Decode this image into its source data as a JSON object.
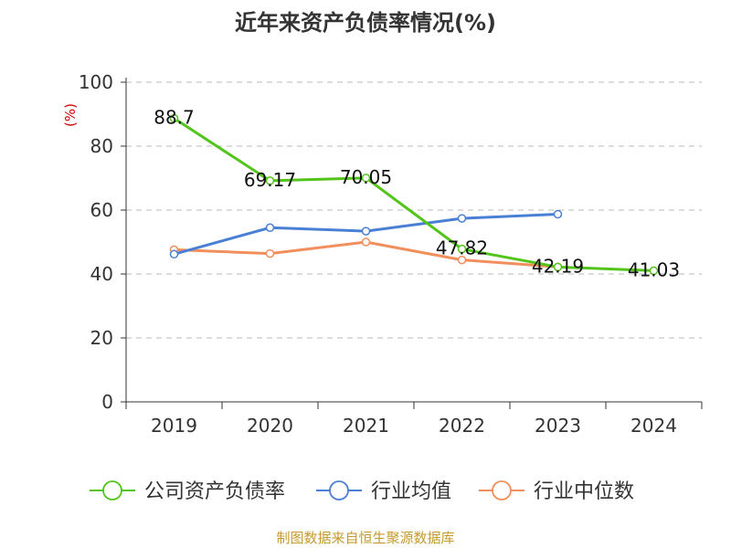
{
  "chart_data": {
    "type": "line",
    "title": "近年来资产负债率情况(%)",
    "ylabel": "(%)",
    "xlabel": "",
    "categories": [
      "2019",
      "2020",
      "2021",
      "2022",
      "2023",
      "2024"
    ],
    "ylim": [
      0,
      100
    ],
    "yticks": [
      0,
      20,
      40,
      60,
      80,
      100
    ],
    "grid": true,
    "legend_position": "bottom",
    "series": [
      {
        "name": "公司资产负债率",
        "color": "#52c41a",
        "values": [
          88.7,
          69.17,
          70.05,
          47.82,
          42.19,
          41.03
        ],
        "labels": [
          "88.7",
          "69.17",
          "70.05",
          "47.82",
          "42.19",
          "41.03"
        ]
      },
      {
        "name": "行业均值",
        "color": "#4a7fd6",
        "values": [
          46.2,
          54.5,
          53.4,
          57.4,
          58.7,
          null
        ]
      },
      {
        "name": "行业中位数",
        "color": "#f28e5b",
        "values": [
          47.6,
          46.4,
          50.0,
          44.4,
          42.2,
          null
        ]
      }
    ],
    "source": "制图数据来自恒生聚源数据库"
  }
}
